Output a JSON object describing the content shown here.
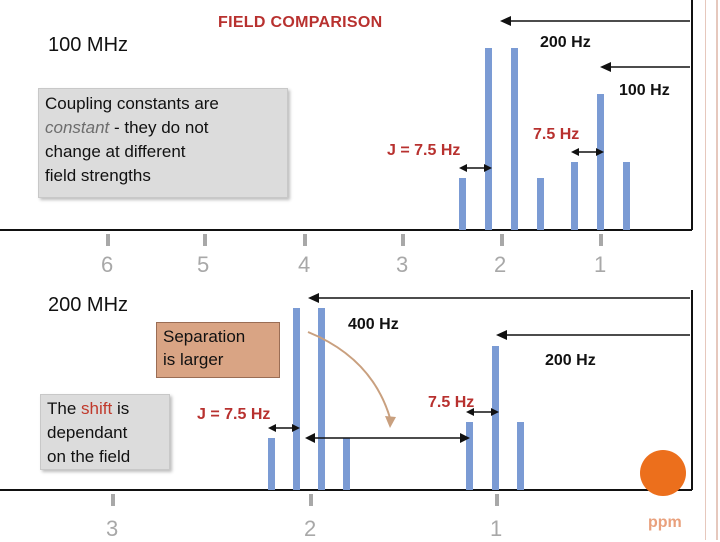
{
  "slide": {
    "title": "FIELD COMPARISON",
    "field_100": "100 MHz",
    "field_200": "200 MHz",
    "note_coupling": {
      "line1": "Coupling constants are",
      "line2_em": "constant",
      "line2_rest": " - they do not",
      "line3": "change at different",
      "line4": "field strengths"
    },
    "note_separation": {
      "line1": "Separation",
      "line2": "is larger"
    },
    "note_shift": {
      "line1_pre": "The ",
      "line1_em": "shift",
      "line1_post": " is",
      "line2": "dependant",
      "line3": "on the field"
    },
    "top_panel": {
      "label_200hz": "200 Hz",
      "label_100hz": "100 Hz",
      "label_j": "J = 7.5 Hz",
      "label_7_5": "7.5 Hz",
      "ticks": [
        "6",
        "5",
        "4",
        "3",
        "2",
        "1"
      ]
    },
    "bottom_panel": {
      "label_400hz": "400 Hz",
      "label_200hz": "200 Hz",
      "label_j": "J = 7.5 Hz",
      "label_7_5": "7.5 Hz",
      "ticks": [
        "3",
        "2",
        "1"
      ]
    },
    "ppm_label": "ppm",
    "colors": {
      "peak": "#7b9bd4",
      "axis": "#111111",
      "accent_red": "#b8312f",
      "tick": "#a8a8a8",
      "orange_dot": "#ec6f1c"
    }
  }
}
